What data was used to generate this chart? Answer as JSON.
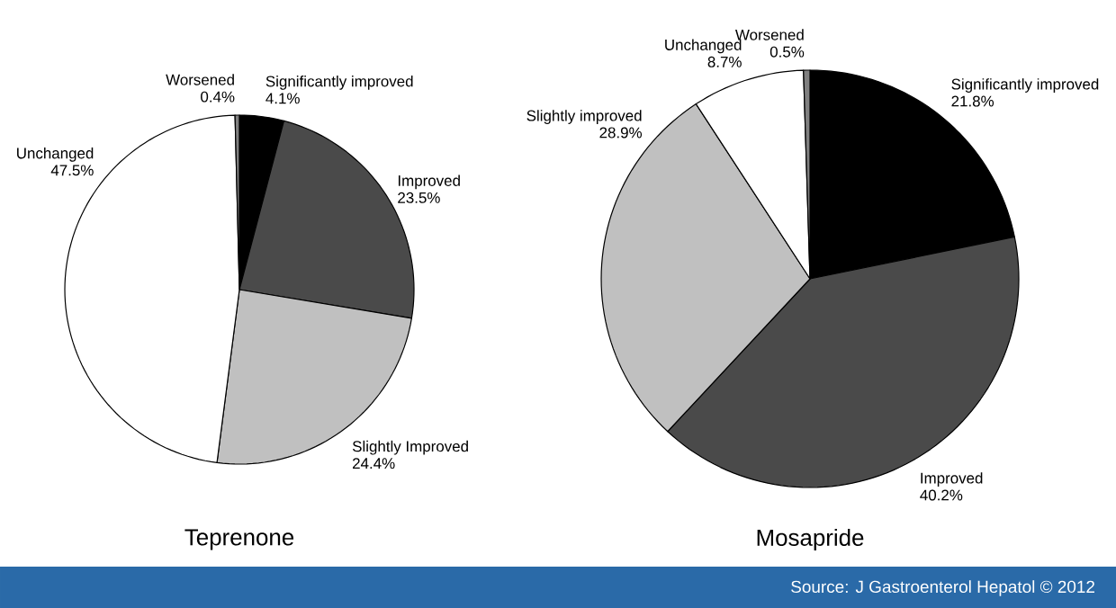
{
  "chart_data": [
    {
      "type": "pie",
      "title": "Teprenone",
      "categories": [
        "Significantly improved",
        "Improved",
        "Slightly Improved",
        "Unchanged",
        "Worsened"
      ],
      "values": [
        4.1,
        23.5,
        24.4,
        47.5,
        0.4
      ],
      "value_labels": [
        "4.1%",
        "23.5%",
        "24.4%",
        "47.5%",
        "0.4%"
      ],
      "colors": [
        "#000000",
        "#4a4a4a",
        "#c0c0c0",
        "#ffffff",
        "#808080"
      ]
    },
    {
      "type": "pie",
      "title": "Mosapride",
      "categories": [
        "Significantly improved",
        "Improved",
        "Slightly improved",
        "Unchanged",
        "Worsened"
      ],
      "values": [
        21.8,
        40.2,
        28.9,
        8.7,
        0.5
      ],
      "value_labels": [
        "21.8%",
        "40.2%",
        "28.9%",
        "8.7%",
        "0.5%"
      ],
      "colors": [
        "#000000",
        "#4a4a4a",
        "#c0c0c0",
        "#ffffff",
        "#808080"
      ],
      "annotations": [
        "Source: J Gastroenterol Hepatol © 2012"
      ]
    }
  ]
}
